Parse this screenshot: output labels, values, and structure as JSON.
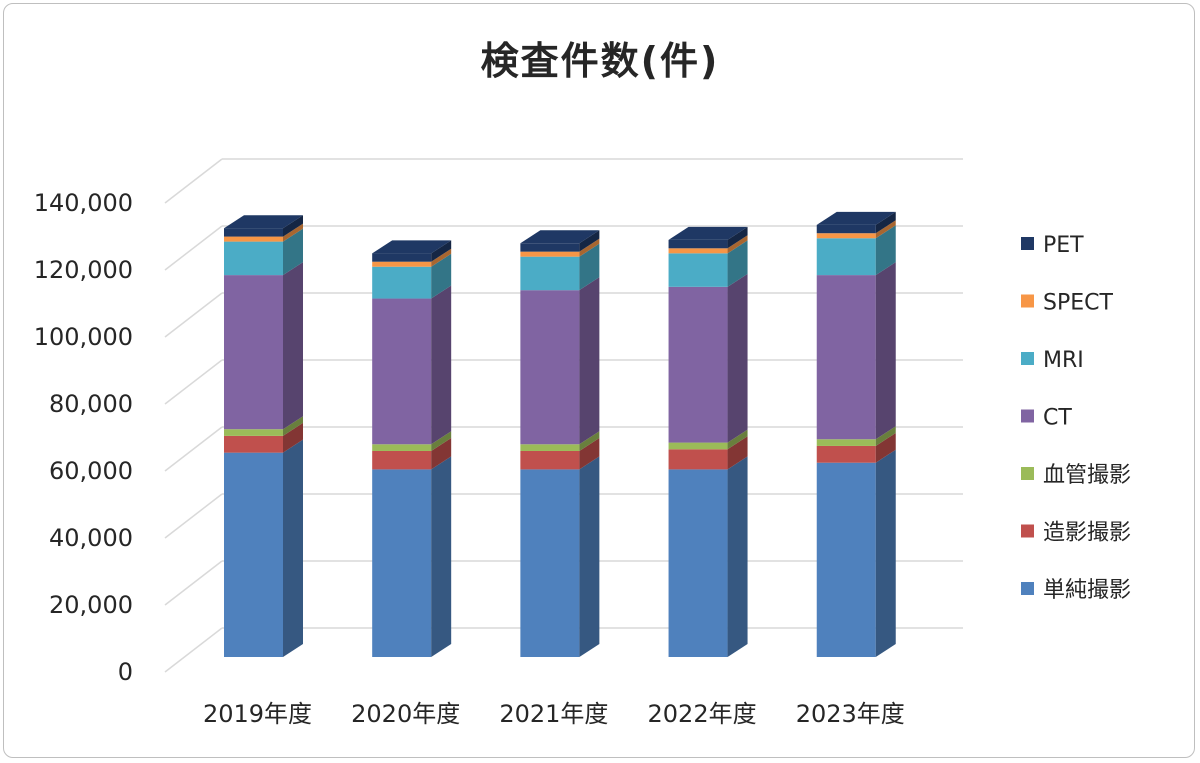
{
  "chart_data": {
    "type": "bar",
    "stacked": true,
    "three_d": true,
    "title": "検査件数(件)",
    "xlabel": "",
    "ylabel": "",
    "categories": [
      "2019年度",
      "2020年度",
      "2021年度",
      "2022年度",
      "2023年度"
    ],
    "ylim": [
      0,
      140000
    ],
    "yticks": [
      0,
      20000,
      40000,
      60000,
      80000,
      100000,
      120000,
      140000
    ],
    "ytick_labels": [
      "0",
      "20,000",
      "40,000",
      "60,000",
      "80,000",
      "100,000",
      "120,000",
      "140,000"
    ],
    "grid": true,
    "legend_position": "right",
    "series": [
      {
        "name": "単純撮影",
        "color": "#4f81bd",
        "values": [
          61000,
          56000,
          56000,
          56000,
          58000
        ]
      },
      {
        "name": "造影撮影",
        "color": "#c0504d",
        "values": [
          5000,
          5500,
          5500,
          6000,
          5000
        ]
      },
      {
        "name": "血管撮影",
        "color": "#9bbb59",
        "values": [
          2000,
          2000,
          2000,
          2000,
          2000
        ]
      },
      {
        "name": "CT",
        "color": "#8064a2",
        "values": [
          46000,
          43500,
          46000,
          46500,
          49000
        ]
      },
      {
        "name": "MRI",
        "color": "#4bacc6",
        "values": [
          10000,
          9500,
          10000,
          10000,
          11000
        ]
      },
      {
        "name": "SPECT",
        "color": "#f79646",
        "values": [
          1500,
          1500,
          1500,
          1500,
          1500
        ]
      },
      {
        "name": "PET",
        "color": "#1f3864",
        "values": [
          2500,
          2500,
          2500,
          2500,
          2500
        ]
      }
    ]
  }
}
